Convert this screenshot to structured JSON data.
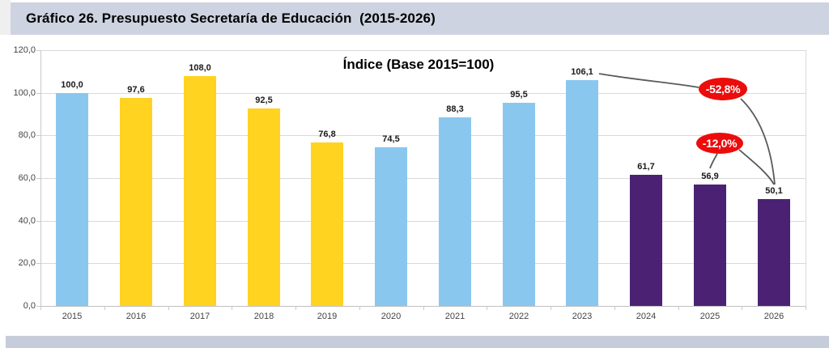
{
  "header": {
    "title": "Gráfico 26. Presupuesto Secretaría de Educación  (2015-2026)"
  },
  "chart_data": {
    "type": "bar",
    "title": "Índice (Base 2015=100)",
    "categories": [
      "2015",
      "2016",
      "2017",
      "2018",
      "2019",
      "2020",
      "2021",
      "2022",
      "2023",
      "2024",
      "2025",
      "2026"
    ],
    "values": [
      100.0,
      97.6,
      108.0,
      92.5,
      76.8,
      74.5,
      88.3,
      95.5,
      106.1,
      61.7,
      56.9,
      50.1
    ],
    "value_labels": [
      "100,0",
      "97,6",
      "108,0",
      "92,5",
      "76,8",
      "74,5",
      "88,3",
      "95,5",
      "106,1",
      "61,7",
      "56,9",
      "50,1"
    ],
    "bar_colors": [
      "#8ac7ef",
      "#ffd320",
      "#ffd320",
      "#ffd320",
      "#ffd320",
      "#8ac7ef",
      "#8ac7ef",
      "#8ac7ef",
      "#8ac7ef",
      "#4b2273",
      "#4b2273",
      "#4b2273"
    ],
    "y_tick_labels": [
      "120,0",
      "100,0",
      "80,0",
      "60,0",
      "40,0",
      "20,0",
      "0,0"
    ],
    "y_tick_values": [
      120,
      100,
      80,
      60,
      40,
      20,
      0
    ],
    "ylim": [
      0,
      120
    ],
    "grid": true,
    "legend": "none",
    "annotations": [
      {
        "label": "-52,8%",
        "from_category": "2023",
        "to_category": "2026",
        "bubble_color": "#ec0c0c",
        "text_color": "#ffffff"
      },
      {
        "label": "-12,0%",
        "from_category": "2025",
        "to_category": "2026",
        "bubble_color": "#ec0c0c",
        "text_color": "#ffffff"
      }
    ]
  },
  "colors": {
    "title_band": "#cdd3e0",
    "bottom_band": "#c6ccda",
    "connector_line": "#5a5a5a",
    "gridline": "#d9d9d9"
  }
}
